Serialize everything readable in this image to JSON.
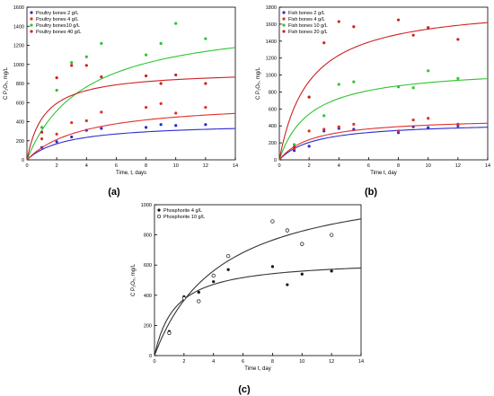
{
  "chart_data": [
    {
      "type": "scatter",
      "panel_label": "(a)",
      "xlabel": "Time, t, days",
      "ylabel": "C P₂O₅, mg/L",
      "xlim": [
        0,
        14
      ],
      "ylim": [
        0,
        1600
      ],
      "xticks": [
        0,
        2,
        4,
        6,
        8,
        10,
        12,
        14
      ],
      "yticks": [
        0,
        200,
        400,
        600,
        800,
        1000,
        1200,
        1400,
        1600
      ],
      "legend_position": "top-left",
      "grid": false,
      "series": [
        {
          "name": "Poultry bones 2 g/L",
          "color": "#2b2bd0",
          "x": [
            1,
            2,
            3,
            4,
            5,
            8,
            9,
            10,
            12
          ],
          "y": [
            130,
            190,
            240,
            310,
            330,
            340,
            370,
            360,
            370
          ],
          "fit": {
            "a": 390,
            "b": 0.38
          }
        },
        {
          "name": "Poultry bones 4 g/L",
          "color": "#e0302a",
          "x": [
            1,
            2,
            3,
            4,
            5,
            8,
            9,
            10,
            12
          ],
          "y": [
            220,
            270,
            390,
            410,
            500,
            550,
            590,
            490,
            550
          ],
          "fit": {
            "a": 620,
            "b": 0.26
          }
        },
        {
          "name": "Poultry bones10 g/L",
          "color": "#2fc42f",
          "x": [
            1,
            2,
            3,
            4,
            5,
            8,
            9,
            10,
            12
          ],
          "y": [
            340,
            730,
            1020,
            1080,
            1220,
            1100,
            1220,
            1430,
            1270
          ],
          "fit": {
            "a": 1500,
            "b": 0.26
          }
        },
        {
          "name": "Poultry bones 40 g/L",
          "color": "#cc2222",
          "x": [
            1,
            2,
            3,
            4,
            5,
            8,
            9,
            10,
            12
          ],
          "y": [
            290,
            860,
            990,
            990,
            870,
            880,
            800,
            890,
            800
          ],
          "fit": {
            "a": 940,
            "b": 0.85
          }
        }
      ]
    },
    {
      "type": "scatter",
      "panel_label": "(b)",
      "xlabel": "Time t, day",
      "ylabel": "C P₂O₅, mg/L",
      "xlim": [
        0,
        14
      ],
      "ylim": [
        0,
        1800
      ],
      "xticks": [
        0,
        2,
        4,
        6,
        8,
        10,
        12,
        14
      ],
      "yticks": [
        0,
        200,
        400,
        600,
        800,
        1000,
        1200,
        1400,
        1600,
        1800
      ],
      "legend_position": "top-left",
      "grid": false,
      "series": [
        {
          "name": "Fish bones 2 g/L",
          "color": "#2b2bd0",
          "x": [
            1,
            2,
            3,
            4,
            5,
            8,
            9,
            10,
            12
          ],
          "y": [
            110,
            160,
            340,
            370,
            360,
            320,
            390,
            380,
            400
          ],
          "fit": {
            "a": 450,
            "b": 0.42
          }
        },
        {
          "name": "Fish bones 4 g/L",
          "color": "#e0302a",
          "x": [
            1,
            2,
            3,
            4,
            5,
            8,
            9,
            10,
            12
          ],
          "y": [
            130,
            340,
            360,
            390,
            420,
            340,
            470,
            490,
            420
          ],
          "fit": {
            "a": 500,
            "b": 0.45
          }
        },
        {
          "name": "Fish bones 10 g/L",
          "color": "#2fc42f",
          "x": [
            1,
            2,
            3,
            4,
            5,
            8,
            9,
            10,
            12
          ],
          "y": [
            180,
            740,
            520,
            890,
            920,
            860,
            850,
            1050,
            960
          ],
          "fit": {
            "a": 1100,
            "b": 0.48
          }
        },
        {
          "name": "Fish bones 20 g/L",
          "color": "#cc2222",
          "x": [
            1,
            2,
            3,
            4,
            5,
            8,
            9,
            10,
            12
          ],
          "y": [
            150,
            740,
            1380,
            1630,
            1570,
            1650,
            1470,
            1560,
            1420
          ],
          "fit": {
            "a": 1850,
            "b": 0.5
          }
        }
      ]
    },
    {
      "type": "scatter",
      "panel_label": "(c)",
      "xlabel": "Time t, day",
      "ylabel": "C P₂O₅, mg/L",
      "xlim": [
        0,
        14
      ],
      "ylim": [
        0,
        1000
      ],
      "xticks": [
        0,
        2,
        4,
        6,
        8,
        10,
        12,
        14
      ],
      "yticks": [
        0,
        200,
        400,
        600,
        800,
        1000
      ],
      "legend_position": "top-left",
      "grid": false,
      "series": [
        {
          "name": "Phosphorite 4 g/L",
          "color": "#111111",
          "marker": "filled",
          "x": [
            1,
            2,
            3,
            4,
            5,
            8,
            9,
            10,
            12
          ],
          "y": [
            160,
            390,
            420,
            490,
            570,
            590,
            470,
            540,
            560
          ],
          "fit": {
            "a": 640,
            "b": 0.7
          }
        },
        {
          "name": "Phosphorite 10 g/L",
          "color": "#111111",
          "marker": "open",
          "x": [
            1,
            2,
            3,
            4,
            5,
            8,
            9,
            10,
            12
          ],
          "y": [
            150,
            380,
            360,
            530,
            660,
            890,
            830,
            740,
            800
          ],
          "fit": {
            "a": 1200,
            "b": 0.22
          }
        }
      ]
    }
  ]
}
